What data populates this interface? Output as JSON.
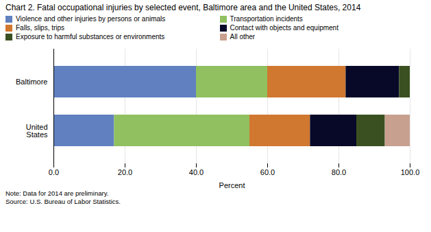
{
  "chart_data": {
    "type": "bar",
    "orientation": "horizontal",
    "stacked": true,
    "title": "Chart 2. Fatal occupational injuries by selected event, Baltimore area and the United States, 2014",
    "note": "Note:  Data for 2014 are preliminary.\nSource: U.S. Bureau of Labor Statistics.",
    "categories": [
      "Baltimore",
      "United\nStates"
    ],
    "series": [
      {
        "name": "Violence and other injuries by persons or animals",
        "color": "#6080C0",
        "values": [
          40.0,
          17.0
        ]
      },
      {
        "name": "Transportation incidents",
        "color": "#90C060",
        "values": [
          20.0,
          38.0
        ]
      },
      {
        "name": "Falls, slips, trips",
        "color": "#D07830",
        "values": [
          22.0,
          17.0
        ]
      },
      {
        "name": "Contact with objects and equipment",
        "color": "#080828",
        "values": [
          15.0,
          13.0
        ]
      },
      {
        "name": "Exposure to harmful substances or environments",
        "color": "#3A5020",
        "values": [
          3.0,
          8.0
        ]
      },
      {
        "name": "All other",
        "color": "#C8A090",
        "values": [
          0.0,
          7.0
        ]
      }
    ],
    "xlabel": "Percent",
    "xlim": [
      0,
      100
    ],
    "xticks": [
      {
        "value": 0,
        "label": "0.0"
      },
      {
        "value": 20,
        "label": "20.0"
      },
      {
        "value": 40,
        "label": "40.0"
      },
      {
        "value": 60,
        "label": "60.0"
      },
      {
        "value": 80,
        "label": "80.0"
      },
      {
        "value": 100,
        "label": "100.0"
      }
    ],
    "grid": true,
    "legend": "top"
  }
}
